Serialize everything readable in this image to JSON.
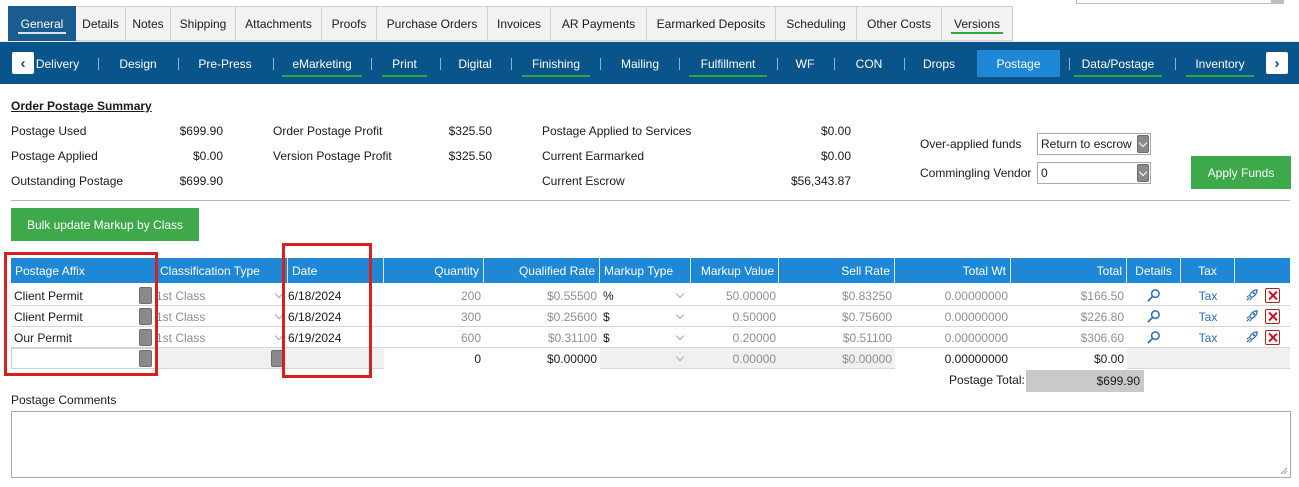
{
  "tabs": [
    "General",
    "Details",
    "Notes",
    "Shipping",
    "Attachments",
    "Proofs",
    "Purchase Orders",
    "Invoices",
    "AR Payments",
    "Earmarked Deposits",
    "Scheduling",
    "Other Costs",
    "Versions"
  ],
  "subnav": [
    "Delivery",
    "Design",
    "Pre-Press",
    "eMarketing",
    "Print",
    "Digital",
    "Finishing",
    "Mailing",
    "Fulfillment",
    "WF",
    "CON",
    "Drops",
    "Postage",
    "Data/Postage",
    "Inventory"
  ],
  "summary": {
    "title": "Order Postage Summary",
    "postage_used_label": "Postage Used",
    "postage_used": "$699.90",
    "postage_applied_label": "Postage Applied",
    "postage_applied": "$0.00",
    "outstanding_label": "Outstanding Postage",
    "outstanding": "$699.90",
    "order_profit_label": "Order Postage Profit",
    "order_profit": "$325.50",
    "version_profit_label": "Version Postage Profit",
    "version_profit": "$325.50",
    "applied_services_label": "Postage Applied to Services",
    "applied_services": "$0.00",
    "earmarked_label": "Current Earmarked",
    "earmarked": "$0.00",
    "escrow_label": "Current Escrow",
    "escrow": "$56,343.87",
    "overapplied_label": "Over-applied funds",
    "overapplied_value": "Return to escrow",
    "commingling_label": "Commingling Vendor",
    "commingling_value": "0",
    "apply_funds": "Apply Funds"
  },
  "bulk_button": "Bulk update Markup by Class",
  "grid": {
    "headers": {
      "affix": "Postage Affix",
      "class": "Classification Type",
      "date": "Date",
      "qty": "Quantity",
      "qrate": "Qualified Rate",
      "mtype": "Markup Type",
      "mvalue": "Markup Value",
      "sell": "Sell Rate",
      "totalwt": "Total Wt",
      "total": "Total",
      "details": "Details",
      "tax": "Tax"
    },
    "rows": [
      {
        "affix": "Client Permit",
        "class": "1st Class",
        "date": "6/18/2024",
        "qty": "200",
        "qrate": "$0.55500",
        "mtype": "%",
        "mvalue": "50.00000",
        "sell": "$0.83250",
        "totalwt": "0.00000000",
        "total": "$166.50",
        "tax": "Tax"
      },
      {
        "affix": "Client Permit",
        "class": "1st Class",
        "date": "6/18/2024",
        "qty": "300",
        "qrate": "$0.25600",
        "mtype": "$",
        "mvalue": "0.50000",
        "sell": "$0.75600",
        "totalwt": "0.00000000",
        "total": "$226.80",
        "tax": "Tax"
      },
      {
        "affix": "Our Permit",
        "class": "1st Class",
        "date": "6/19/2024",
        "qty": "600",
        "qrate": "$0.31100",
        "mtype": "$",
        "mvalue": "0.20000",
        "sell": "$0.51100",
        "totalwt": "0.00000000",
        "total": "$306.60",
        "tax": "Tax"
      }
    ],
    "new_row": {
      "qty": "0",
      "qrate": "$0.00000",
      "mvalue": "0.00000",
      "sell": "$0.00000",
      "totalwt": "0.00000000",
      "total": "$0.00"
    }
  },
  "postage_total_label": "Postage Total:",
  "postage_total": "$699.90",
  "comments_label": "Postage Comments",
  "colors": {
    "nav_bg": "#09548a",
    "active_tab": "#1e88d6",
    "green": "#3ea94a",
    "highlight_red": "#d91e1e"
  }
}
